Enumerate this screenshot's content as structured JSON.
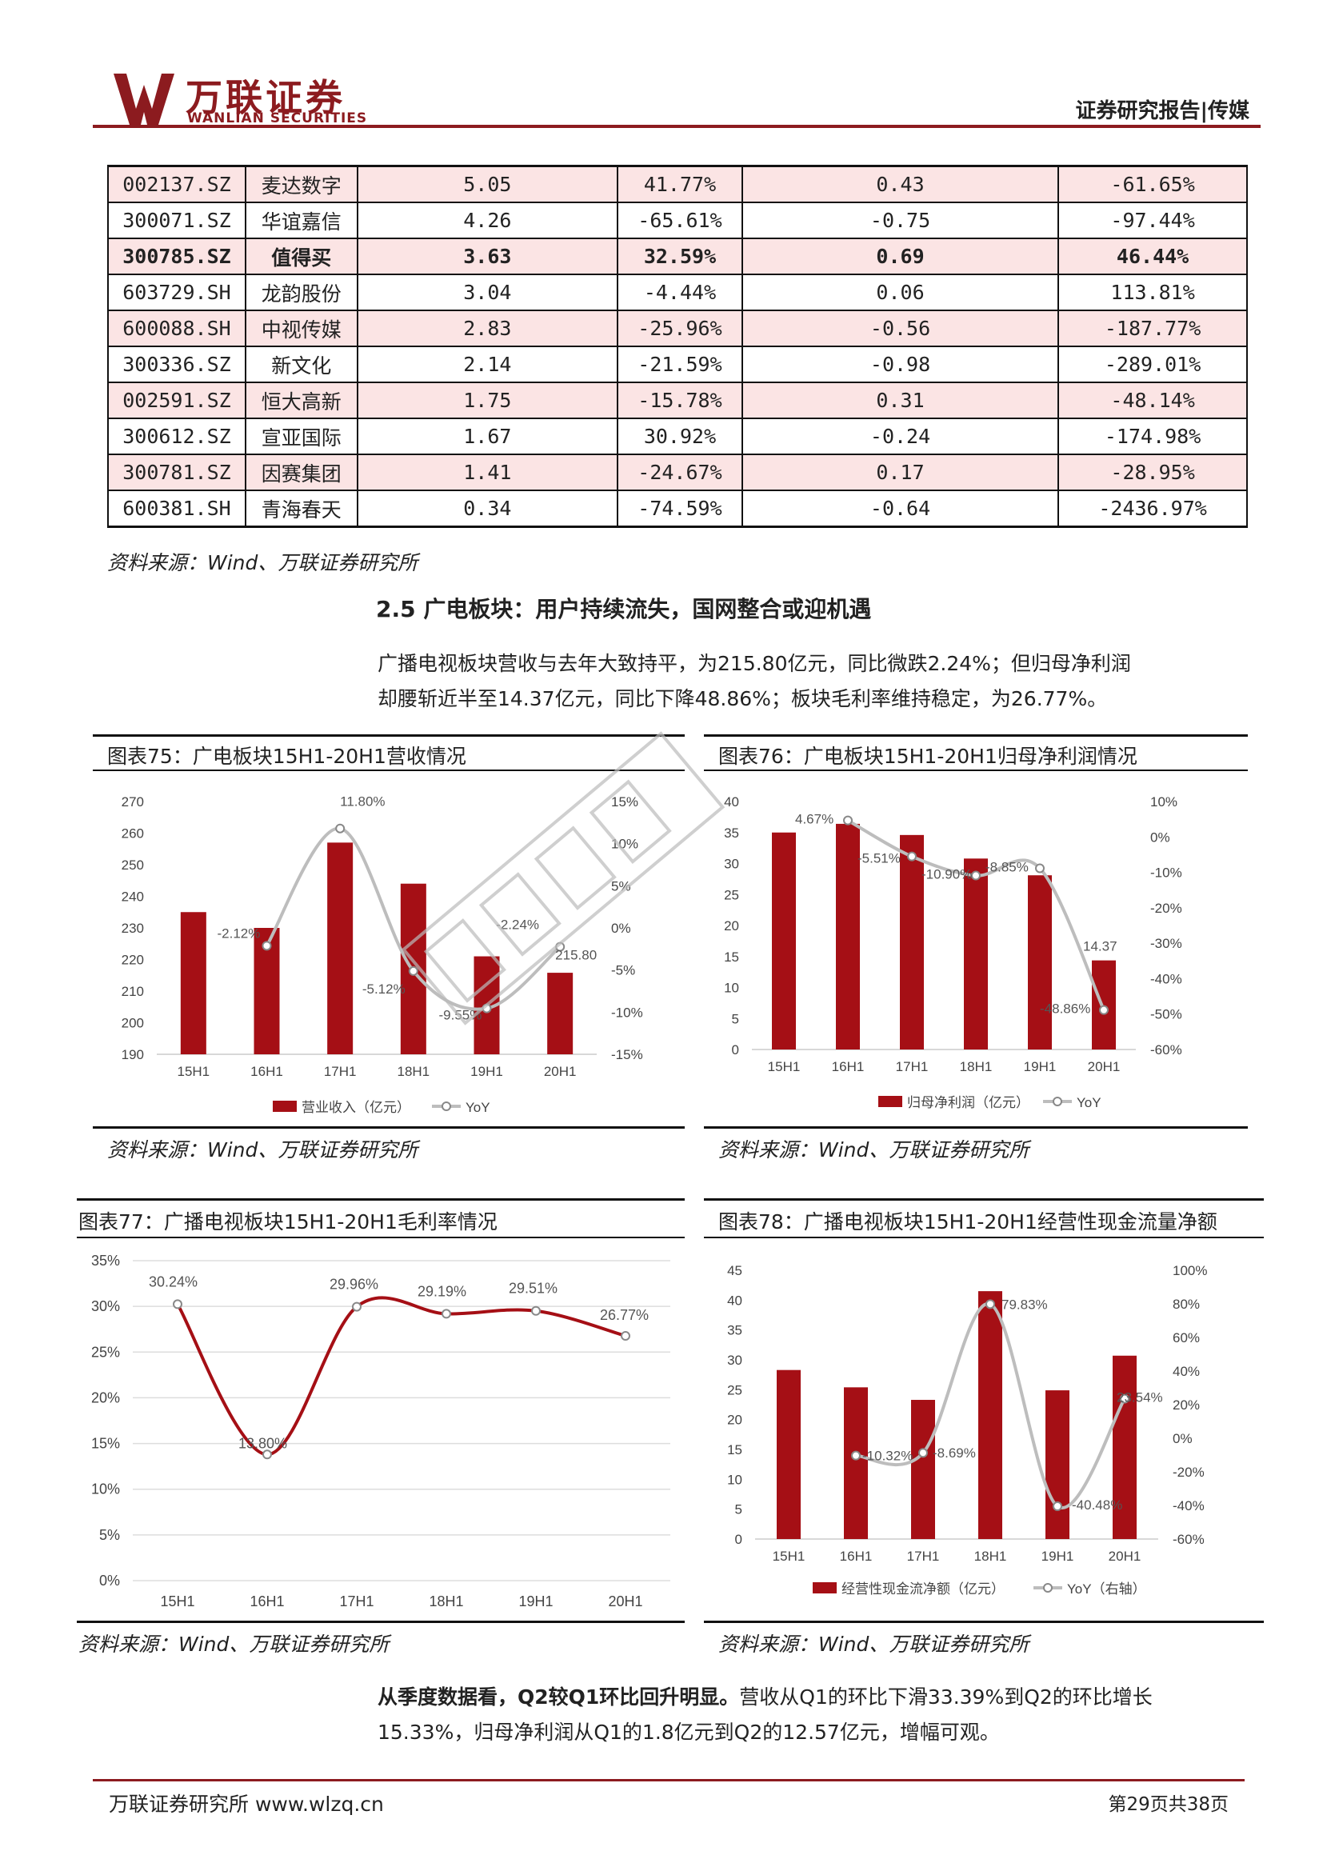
{
  "header": {
    "logo_cn": "万联证券",
    "logo_en": "WANLIAN SECURITIES",
    "report_type": "证券研究报告|传媒"
  },
  "table": {
    "rows": [
      {
        "code": "002137.SZ",
        "name": "麦达数字",
        "v1": "5.05",
        "v2": "41.77%",
        "v3": "0.43",
        "v4": "-61.65%",
        "pink": true,
        "bold": false
      },
      {
        "code": "300071.SZ",
        "name": "华谊嘉信",
        "v1": "4.26",
        "v2": "-65.61%",
        "v3": "-0.75",
        "v4": "-97.44%",
        "pink": false,
        "bold": false
      },
      {
        "code": "300785.SZ",
        "name": "值得买",
        "v1": "3.63",
        "v2": "32.59%",
        "v3": "0.69",
        "v4": "46.44%",
        "pink": true,
        "bold": true
      },
      {
        "code": "603729.SH",
        "name": "龙韵股份",
        "v1": "3.04",
        "v2": "-4.44%",
        "v3": "0.06",
        "v4": "113.81%",
        "pink": false,
        "bold": false
      },
      {
        "code": "600088.SH",
        "name": "中视传媒",
        "v1": "2.83",
        "v2": "-25.96%",
        "v3": "-0.56",
        "v4": "-187.77%",
        "pink": true,
        "bold": false
      },
      {
        "code": "300336.SZ",
        "name": "新文化",
        "v1": "2.14",
        "v2": "-21.59%",
        "v3": "-0.98",
        "v4": "-289.01%",
        "pink": false,
        "bold": false
      },
      {
        "code": "002591.SZ",
        "name": "恒大高新",
        "v1": "1.75",
        "v2": "-15.78%",
        "v3": "0.31",
        "v4": "-48.14%",
        "pink": true,
        "bold": false
      },
      {
        "code": "300612.SZ",
        "name": "宣亚国际",
        "v1": "1.67",
        "v2": "30.92%",
        "v3": "-0.24",
        "v4": "-174.98%",
        "pink": false,
        "bold": false
      },
      {
        "code": "300781.SZ",
        "name": "因赛集团",
        "v1": "1.41",
        "v2": "-24.67%",
        "v3": "0.17",
        "v4": "-28.95%",
        "pink": true,
        "bold": false
      },
      {
        "code": "600381.SH",
        "name": "青海春天",
        "v1": "0.34",
        "v2": "-74.59%",
        "v3": "-0.64",
        "v4": "-2436.97%",
        "pink": false,
        "bold": false
      }
    ],
    "source": "资料来源：Wind、万联证券研究所"
  },
  "section": {
    "title": "2.5 广电板块：用户持续流失，国网整合或迎机遇",
    "para1_line1": "广播电视板块营收与去年大致持平，为215.80亿元，同比微跌2.24%；但归母净利润",
    "para1_line2": "却腰斩近半至14.37亿元，同比下降48.86%；板块毛利率维持稳定，为26.77%。",
    "para2_bold": "从季度数据看，Q2较Q1环比回升明显。",
    "para2_rest": "营收从Q1的环比下滑33.39%到Q2的环比增长",
    "para2_line2": "15.33%，归母净利润从Q1的1.8亿元到Q2的12.57亿元，增幅可观。"
  },
  "figures": {
    "fig75_title": "图表75：广电板块15H1-20H1营收情况",
    "fig76_title": "图表76：广电板块15H1-20H1归母净利润情况",
    "fig77_title": "图表77：广播电视板块15H1-20H1毛利率情况",
    "fig78_title": "图表78：广播电视板块15H1-20H1经营性现金流量净额",
    "source": "资料来源：Wind、万联证券研究所"
  },
  "footer": {
    "left": "万联证券研究所 www.wlzq.cn",
    "right": "第29页共38页"
  },
  "colors": {
    "brand": "#8c1b1f",
    "bar": "#a50f15",
    "line": "#bdbdbd",
    "pink": "#fbe4e4"
  },
  "chart_data": [
    {
      "type": "bar",
      "categories": [
        "15H1",
        "16H1",
        "17H1",
        "18H1",
        "19H1",
        "20H1"
      ],
      "series": [
        {
          "name": "营业收入（亿元）",
          "values": [
            235.0,
            230.0,
            257.0,
            244.0,
            221.0,
            215.8
          ]
        },
        {
          "name": "YoY",
          "values": [
            null,
            -2.12,
            11.8,
            -5.12,
            -9.55,
            -2.24
          ]
        }
      ],
      "data_labels": [
        "-2.12%",
        "11.80%",
        "-5.12%",
        "-9.55%",
        "-2.24%",
        "215.80"
      ],
      "ylim": [
        190,
        270
      ],
      "y2lim": [
        -15,
        15
      ],
      "yticks": [
        "270",
        "260",
        "250",
        "240",
        "230",
        "220",
        "210",
        "200",
        "190"
      ],
      "y2ticks": [
        "15%",
        "10%",
        "5%",
        "0%",
        "-5%",
        "-10%",
        "-15%"
      ]
    },
    {
      "type": "bar",
      "categories": [
        "15H1",
        "16H1",
        "17H1",
        "18H1",
        "19H1",
        "20H1"
      ],
      "series": [
        {
          "name": "归母净利润（亿元）",
          "values": [
            35.0,
            36.4,
            34.6,
            30.8,
            28.1,
            14.37
          ]
        },
        {
          "name": "YoY",
          "values": [
            null,
            4.67,
            -5.51,
            -10.9,
            -8.85,
            -48.86
          ]
        }
      ],
      "data_labels": [
        "4.67%",
        "-5.51%",
        "-10.90%",
        "-8.85%",
        "14.37",
        "-48.86%"
      ],
      "ylim": [
        0,
        40
      ],
      "y2lim": [
        -60,
        10
      ],
      "yticks": [
        "40",
        "35",
        "30",
        "25",
        "20",
        "15",
        "10",
        "5",
        "0"
      ],
      "y2ticks": [
        "10%",
        "0%",
        "-10%",
        "-20%",
        "-30%",
        "-40%",
        "-50%",
        "-60%"
      ]
    },
    {
      "type": "line",
      "categories": [
        "15H1",
        "16H1",
        "17H1",
        "18H1",
        "19H1",
        "20H1"
      ],
      "series": [
        {
          "values": [
            30.24,
            13.8,
            29.96,
            29.19,
            29.51,
            26.77
          ]
        }
      ],
      "data_labels": [
        "30.24%",
        "13.80%",
        "29.96%",
        "29.19%",
        "29.51%",
        "26.77%"
      ],
      "ylim": [
        0,
        35
      ],
      "yticks": [
        "35%",
        "30%",
        "25%",
        "20%",
        "15%",
        "10%",
        "5%",
        "0%"
      ]
    },
    {
      "type": "bar",
      "categories": [
        "15H1",
        "16H1",
        "17H1",
        "18H1",
        "19H1",
        "20H1"
      ],
      "series": [
        {
          "name": "经营性现金流净额（亿元）",
          "values": [
            28.3,
            25.4,
            23.3,
            41.5,
            24.9,
            30.7
          ]
        },
        {
          "name": "YoY（右轴）",
          "values": [
            null,
            -10.32,
            -8.69,
            79.83,
            -40.48,
            23.54
          ]
        }
      ],
      "data_labels": [
        "-10.32%",
        "-8.69%",
        "79.83%",
        "-40.48%",
        "23.54%"
      ],
      "ylim": [
        0,
        45
      ],
      "y2lim": [
        -60,
        100
      ],
      "yticks": [
        "45",
        "40",
        "35",
        "30",
        "25",
        "20",
        "15",
        "10",
        "5",
        "0"
      ],
      "y2ticks": [
        "100%",
        "80%",
        "60%",
        "40%",
        "20%",
        "0%",
        "-20%",
        "-40%",
        "-60%"
      ]
    }
  ]
}
